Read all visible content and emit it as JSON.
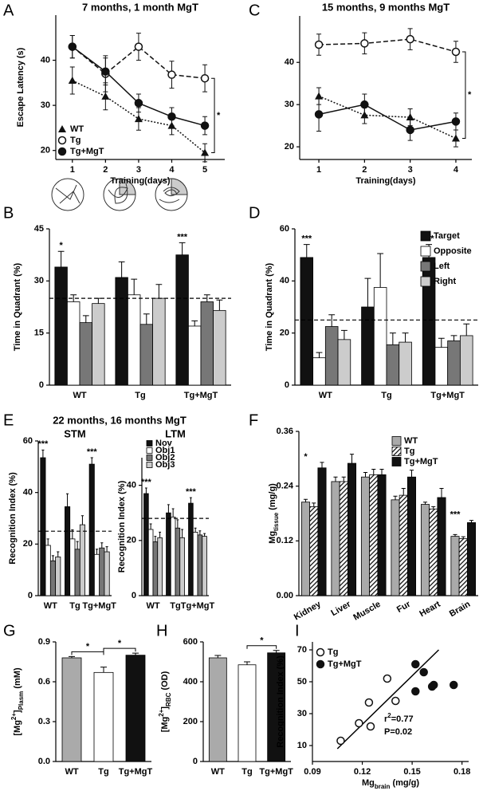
{
  "chart_data": [
    {
      "panel": "A",
      "type": "line",
      "title": "7 months, 1 month MgT",
      "ylabel": "Escape Latency (s)",
      "xlabel": "Training(days)",
      "x": [
        1,
        2,
        3,
        4,
        5
      ],
      "xlim": [
        0.5,
        5.6
      ],
      "xticks": [
        1,
        2,
        3,
        4,
        5
      ],
      "ylim": [
        18,
        50
      ],
      "yticks": [
        20,
        30,
        40
      ],
      "legend": "lower left",
      "significance": "*",
      "series": [
        {
          "name": "WT",
          "marker": "triangle",
          "linestyle": "dotted",
          "color": "#111111",
          "values": [
            35.5,
            32,
            27,
            25.5,
            19.5
          ],
          "errors": [
            3,
            3,
            2.5,
            2,
            2
          ]
        },
        {
          "name": "Tg",
          "marker": "open-circle",
          "linestyle": "dashed",
          "color": "#111111",
          "values": [
            43,
            37,
            43,
            36.8,
            36
          ],
          "errors": [
            2.5,
            4,
            3,
            3,
            3
          ]
        },
        {
          "name": "Tg+MgT",
          "marker": "filled-circle",
          "linestyle": "solid",
          "color": "#111111",
          "values": [
            43,
            37.5,
            30.5,
            27.5,
            25.5
          ],
          "errors": [
            2.5,
            3,
            2,
            2,
            2
          ]
        }
      ]
    },
    {
      "panel": "C",
      "type": "line",
      "title": "15 months, 9 months MgT",
      "xlabel": "Training(days)",
      "x": [
        1,
        2,
        3,
        4
      ],
      "xlim": [
        0.58,
        4.35
      ],
      "xticks": [
        1,
        2,
        3,
        4
      ],
      "ylim": [
        17,
        51
      ],
      "yticks": [
        20,
        30,
        40
      ],
      "significance": "*",
      "series": [
        {
          "name": "WT",
          "marker": "triangle",
          "linestyle": "dotted",
          "color": "#111111",
          "values": [
            32,
            27.5,
            27,
            22
          ],
          "errors": [
            2,
            2,
            2,
            2
          ]
        },
        {
          "name": "Tg",
          "marker": "open-circle",
          "linestyle": "dashed",
          "color": "#111111",
          "values": [
            44.2,
            44.5,
            45.5,
            42.5
          ],
          "errors": [
            2.5,
            2.5,
            2.5,
            2.5
          ]
        },
        {
          "name": "Tg+MgT",
          "marker": "filled-circle",
          "linestyle": "solid",
          "color": "#111111",
          "values": [
            27.7,
            30,
            24,
            26
          ],
          "errors": [
            4,
            2.5,
            2.5,
            2
          ]
        }
      ]
    },
    {
      "panel": "B",
      "type": "bar",
      "ylabel": "Time in Quadrant (%)",
      "categories": [
        "WT",
        "Tg",
        "Tg+MgT"
      ],
      "ylim": [
        0,
        45
      ],
      "yticks": [
        0,
        15,
        30,
        45
      ],
      "reference_line": 25,
      "significance": [
        "*",
        null,
        "***"
      ],
      "series": [
        {
          "name": "Target",
          "color": "#111111",
          "values": [
            34,
            31,
            37.5
          ],
          "errors": [
            4.5,
            4.5,
            3.5
          ]
        },
        {
          "name": "Opposite",
          "color": "#ffffff",
          "values": [
            24,
            26,
            17
          ],
          "errors": [
            2,
            4.5,
            1.5
          ]
        },
        {
          "name": "Left",
          "color": "#777777",
          "values": [
            18,
            17.5,
            24
          ],
          "errors": [
            2,
            3,
            2
          ]
        },
        {
          "name": "Right",
          "color": "#cccccc",
          "values": [
            23.5,
            25,
            21.5
          ],
          "errors": [
            1.5,
            4,
            3
          ]
        }
      ]
    },
    {
      "panel": "D",
      "type": "bar",
      "ylabel": "Time in Quadrant (%)",
      "categories": [
        "WT",
        "Tg",
        "Tg+MgT"
      ],
      "ylim": [
        0,
        60
      ],
      "yticks": [
        0,
        20,
        40,
        60
      ],
      "reference_line": 25,
      "legend": "upper right",
      "significance": [
        "***",
        null,
        "***"
      ],
      "series": [
        {
          "name": "Target",
          "color": "#111111",
          "values": [
            49,
            30,
            49
          ],
          "errors": [
            5,
            11,
            5
          ]
        },
        {
          "name": "Opposite",
          "color": "#ffffff",
          "values": [
            10.5,
            37.5,
            14.5
          ],
          "errors": [
            2,
            13,
            3.5
          ]
        },
        {
          "name": "Left",
          "color": "#777777",
          "values": [
            22.5,
            15.5,
            17
          ],
          "errors": [
            4.5,
            4.5,
            2
          ]
        },
        {
          "name": "Right",
          "color": "#cccccc",
          "values": [
            17.5,
            16.5,
            19
          ],
          "errors": [
            3.5,
            3.5,
            4.5
          ]
        }
      ]
    },
    {
      "panel": "E",
      "type": "bar",
      "heading": "22 months, 16 months MgT",
      "title": "STM",
      "ylabel": "Recognition Index (%)",
      "categories": [
        "WT",
        "Tg",
        "Tg+MgT"
      ],
      "ylim": [
        0,
        60
      ],
      "yticks": [
        0,
        20,
        40,
        60
      ],
      "reference_line": 25,
      "significance": [
        "***",
        null,
        "***"
      ],
      "series": [
        {
          "name": "Nov",
          "color": "#111111",
          "values": [
            53.5,
            34.5,
            51
          ],
          "errors": [
            3,
            5,
            2.5
          ]
        },
        {
          "name": "Obj1",
          "color": "#ffffff",
          "values": [
            19.5,
            22,
            16
          ],
          "errors": [
            2.5,
            3.5,
            2
          ]
        },
        {
          "name": "Obj2",
          "color": "#777777",
          "values": [
            13.5,
            18,
            18.5
          ],
          "errors": [
            2,
            3,
            2
          ]
        },
        {
          "name": "Obj3",
          "color": "#cccccc",
          "values": [
            15,
            27.5,
            17
          ],
          "errors": [
            2,
            3.5,
            2
          ]
        }
      ]
    },
    {
      "type": "bar",
      "title": "LTM",
      "ylabel": "Recognition Index (%)",
      "categories": [
        "WT",
        "Tg",
        "Tg+MgT"
      ],
      "ylim": [
        0,
        50
      ],
      "yticks": [
        0,
        20,
        40
      ],
      "reference_line": 28,
      "legend": "upper left",
      "significance": [
        "***",
        null,
        "***"
      ],
      "series": [
        {
          "name": "Nov",
          "color": "#111111",
          "values": [
            37,
            30,
            33.5
          ],
          "errors": [
            2,
            3,
            2
          ]
        },
        {
          "name": "Obj1",
          "color": "#ffffff",
          "values": [
            24,
            28.5,
            23
          ],
          "errors": [
            2,
            3,
            1.5
          ]
        },
        {
          "name": "Obj2",
          "color": "#777777",
          "values": [
            19.5,
            24.5,
            22
          ],
          "errors": [
            2,
            3,
            1.5
          ]
        },
        {
          "name": "Obj3",
          "color": "#cccccc",
          "values": [
            21,
            21,
            21.5
          ],
          "errors": [
            2,
            3,
            1
          ]
        }
      ]
    },
    {
      "panel": "F",
      "type": "bar",
      "ylabel": [
        {
          "text": "Mg"
        },
        {
          "sub": "tissue"
        },
        {
          "text": " (mg/g)"
        }
      ],
      "categories": [
        "Kidney",
        "Liver",
        "Muscle",
        "Fur",
        "Heart",
        "Brain"
      ],
      "ylim": [
        0,
        0.36
      ],
      "yticks": [
        {
          "value": 0,
          "label": "0.00"
        },
        0.12,
        0.24,
        0.36
      ],
      "legend": "upper right",
      "significance": [
        "*",
        null,
        null,
        null,
        null,
        "***"
      ],
      "series": [
        {
          "name": "WT",
          "color": "#aaaaaa",
          "values": [
            0.205,
            0.25,
            0.26,
            0.21,
            0.2,
            0.13
          ],
          "errors": [
            0.006,
            0.01,
            0.01,
            0.008,
            0.005,
            0.004
          ]
        },
        {
          "name": "Tg",
          "color": "#111111",
          "pattern": "hatch",
          "values": [
            0.195,
            0.25,
            0.265,
            0.22,
            0.19,
            0.125
          ],
          "errors": [
            0.008,
            0.01,
            0.012,
            0.015,
            0.005,
            0.004
          ]
        },
        {
          "name": "Tg+MgT",
          "color": "#111111",
          "values": [
            0.28,
            0.29,
            0.265,
            0.26,
            0.215,
            0.16
          ],
          "errors": [
            0.012,
            0.02,
            0.012,
            0.015,
            0.02,
            0.005
          ]
        }
      ]
    },
    {
      "panel": "G",
      "type": "bar",
      "ylabel": [
        {
          "text": "[Mg"
        },
        {
          "sup": "2+"
        },
        {
          "text": "]"
        },
        {
          "sub": "Plasm"
        },
        {
          "text": " (mM)"
        }
      ],
      "categories": [
        "WT",
        "Tg",
        "Tg+MgT"
      ],
      "values": [
        0.78,
        0.67,
        0.8
      ],
      "errors": [
        0.01,
        0.04,
        0.015
      ],
      "colors": [
        "#aaaaaa",
        "#ffffff",
        "#111111"
      ],
      "ylim": [
        0,
        0.9
      ],
      "yticks": [
        {
          "value": 0,
          "label": "0.0"
        },
        0.3,
        0.6,
        0.9
      ],
      "pair_significance": [
        "*",
        "*"
      ]
    },
    {
      "panel": "H",
      "type": "bar",
      "ylabel": [
        {
          "text": "[Mg"
        },
        {
          "sup": "2+"
        },
        {
          "text": "]"
        },
        {
          "sub": "RBC"
        },
        {
          "text": " (OD)"
        }
      ],
      "categories": [
        "WT",
        "Tg",
        "Tg+MgT"
      ],
      "values": [
        520,
        485,
        545
      ],
      "errors": [
        12,
        15,
        12
      ],
      "colors": [
        "#aaaaaa",
        "#ffffff",
        "#111111"
      ],
      "ylim": [
        0,
        600
      ],
      "yticks": [
        0,
        200,
        400,
        600
      ],
      "pair_significance": [
        null,
        "*"
      ]
    },
    {
      "panel": "I",
      "type": "scatter",
      "ylabel": "Recognition Index (%)",
      "xlabel": [
        {
          "text": "Mg"
        },
        {
          "sub": "brain"
        },
        {
          "text": " (mg/g)"
        }
      ],
      "xlim": [
        0.09,
        0.184
      ],
      "xticks": [
        0.09,
        0.12,
        0.15,
        0.18
      ],
      "ylim": [
        0,
        75
      ],
      "yticks": [
        10,
        30,
        50,
        70
      ],
      "legend": "upper left",
      "series": [
        {
          "name": "Tg",
          "marker": "open-circle",
          "color": "#111111",
          "x": [
            0.107,
            0.118,
            0.124,
            0.125,
            0.135,
            0.14
          ],
          "values": [
            13,
            24,
            37,
            22,
            52,
            38
          ]
        },
        {
          "name": "Tg+MgT",
          "marker": "filled-circle",
          "color": "#111111",
          "x": [
            0.152,
            0.152,
            0.157,
            0.162,
            0.163,
            0.175
          ],
          "values": [
            61,
            44,
            56,
            47,
            48,
            48
          ]
        }
      ],
      "fit": {
        "x": [
          0.105,
          0.166
        ],
        "y": [
          8,
          70
        ]
      },
      "annotations": [
        [
          {
            "text": "r"
          },
          {
            "sup": "2"
          },
          {
            "text": "=0.77"
          }
        ],
        "P=0.02"
      ]
    }
  ]
}
